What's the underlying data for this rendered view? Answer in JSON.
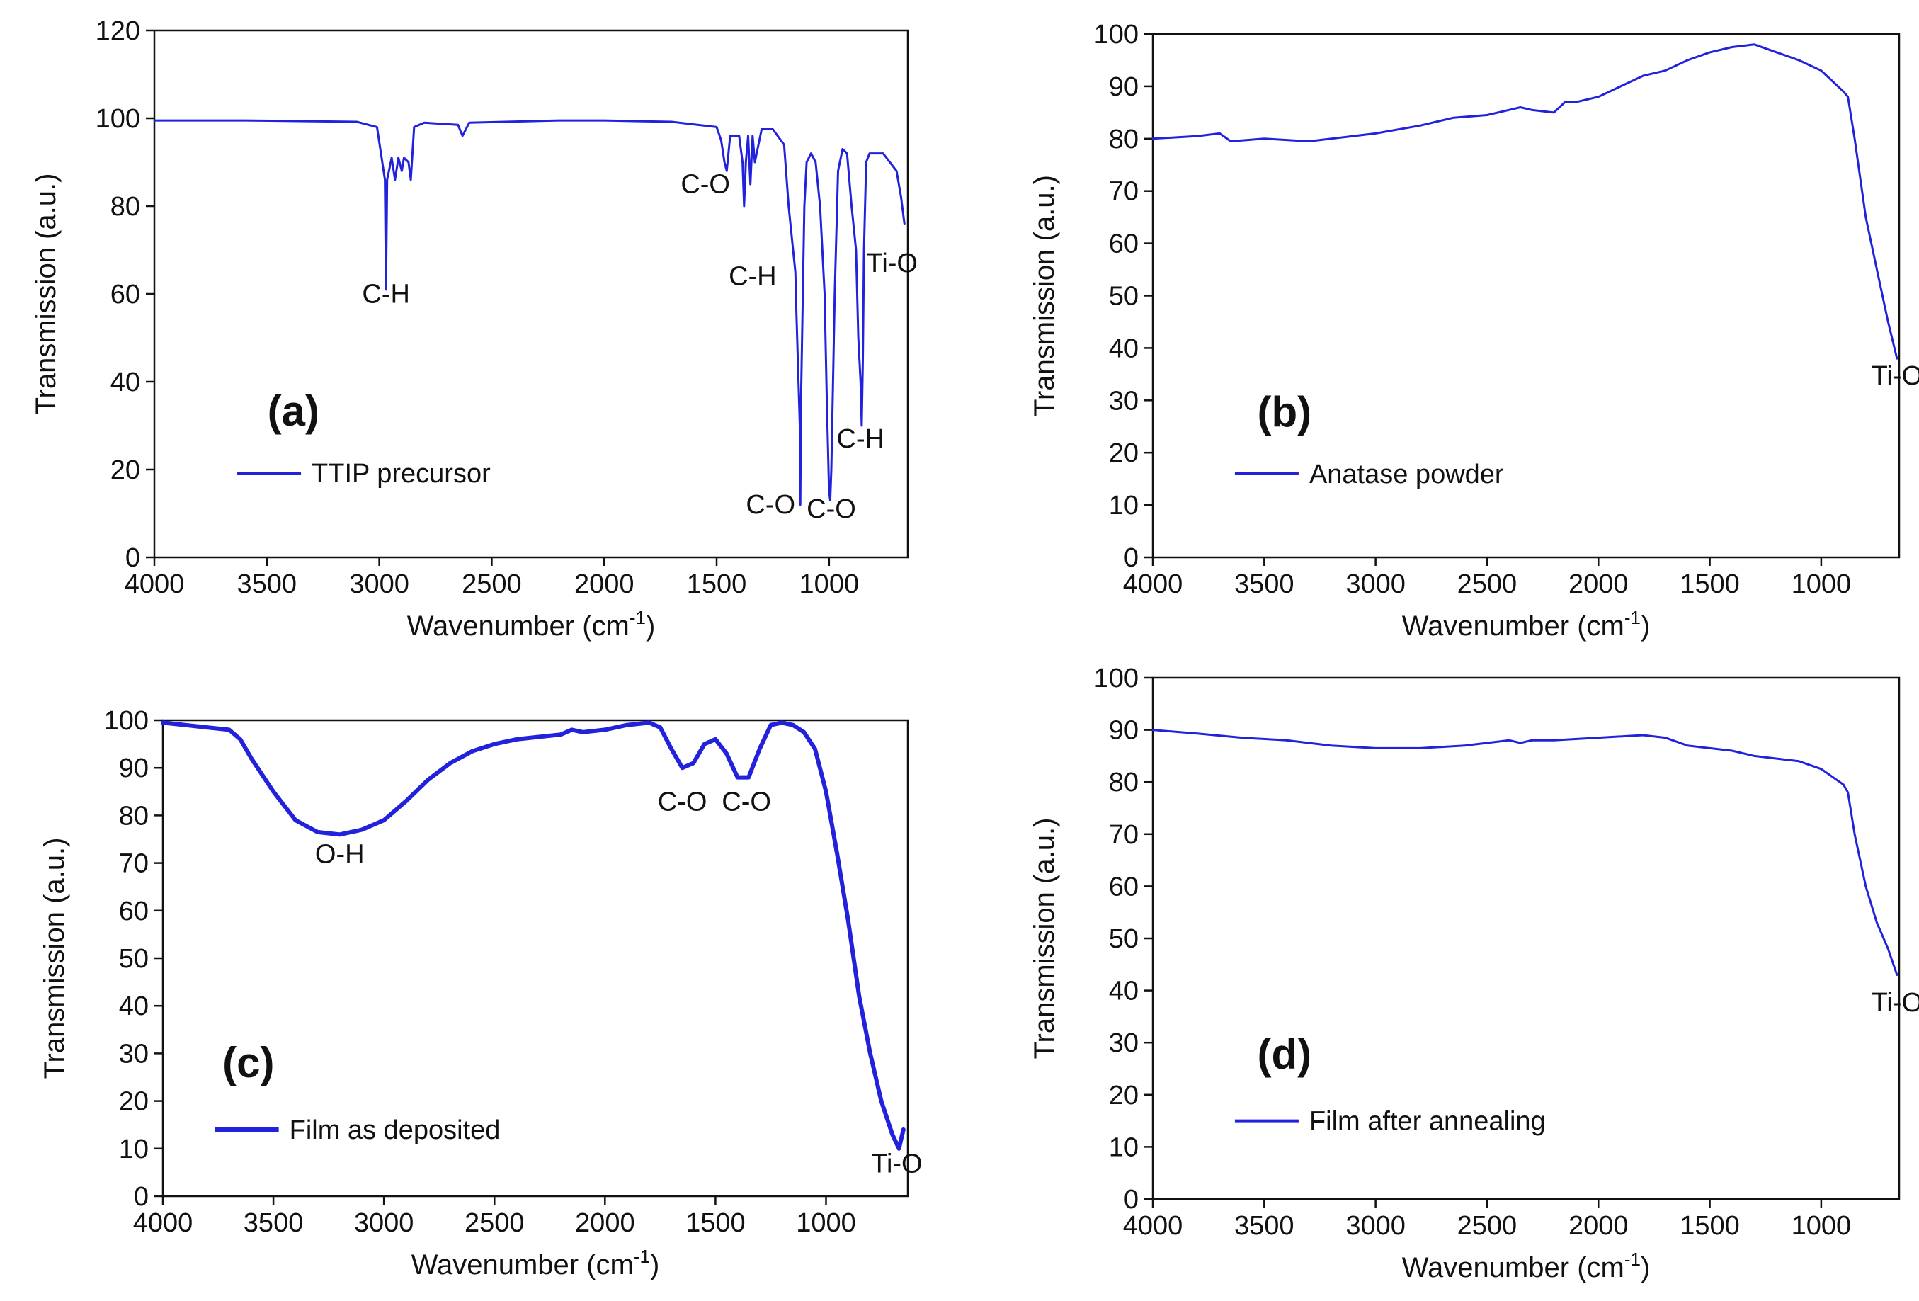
{
  "colors": {
    "series": "#2222dd",
    "axis": "#111111"
  },
  "chart_data": [
    {
      "type": "line",
      "panel_label": "(a)",
      "xlabel": "Wavenumber (cm",
      "xlabel_sup": "-1",
      "xlabel_close": ")",
      "ylabel": "Transmission (a.u.)",
      "xlim": [
        4000,
        650
      ],
      "ylim": [
        0,
        120
      ],
      "xticks": [
        4000,
        3500,
        3000,
        2500,
        2000,
        1500,
        1000
      ],
      "yticks": [
        0,
        20,
        40,
        60,
        80,
        100,
        120
      ],
      "legend": "TTIP precursor",
      "line_width": 3,
      "series": [
        {
          "name": "TTIP precursor",
          "x": [
            4000,
            3600,
            3100,
            3010,
            2975,
            2970,
            2965,
            2945,
            2930,
            2915,
            2900,
            2890,
            2870,
            2860,
            2845,
            2800,
            2650,
            2630,
            2600,
            2200,
            2000,
            1700,
            1500,
            1480,
            1465,
            1455,
            1440,
            1400,
            1385,
            1378,
            1370,
            1360,
            1350,
            1340,
            1330,
            1300,
            1250,
            1200,
            1180,
            1160,
            1150,
            1145,
            1130,
            1128,
            1125,
            1110,
            1100,
            1080,
            1060,
            1040,
            1020,
            1010,
            1000,
            995,
            990,
            975,
            960,
            940,
            920,
            900,
            880,
            870,
            860,
            855,
            850,
            845,
            835,
            820,
            800,
            760,
            730,
            700,
            680,
            665
          ],
          "y": [
            99.5,
            99.5,
            99.2,
            98,
            86,
            61,
            86,
            91,
            86,
            91,
            88,
            91,
            90,
            86,
            98,
            99,
            98.5,
            96,
            99,
            99.5,
            99.5,
            99.2,
            98,
            95,
            90,
            88,
            96,
            96,
            90,
            80,
            90,
            96,
            85,
            96,
            90,
            97.5,
            97.5,
            94,
            80,
            70,
            65,
            55,
            30,
            12,
            35,
            80,
            90,
            92,
            90,
            80,
            60,
            35,
            15,
            13,
            20,
            60,
            88,
            93,
            92,
            80,
            70,
            50,
            40,
            30,
            45,
            70,
            90,
            92,
            92,
            92,
            90,
            88,
            82,
            76
          ]
        }
      ],
      "annotations": [
        {
          "text": "C-H",
          "x": 2970,
          "y": 58
        },
        {
          "text": "C-O",
          "x": 1550,
          "y": 83
        },
        {
          "text": "C-H",
          "x": 1340,
          "y": 62
        },
        {
          "text": "Ti-O",
          "x": 720,
          "y": 65
        },
        {
          "text": "C-H",
          "x": 860,
          "y": 25
        },
        {
          "text": "C-O",
          "x": 1260,
          "y": 10
        },
        {
          "text": "C-O",
          "x": 990,
          "y": 9
        }
      ]
    },
    {
      "type": "line",
      "panel_label": "(b)",
      "xlabel": "Wavenumber (cm",
      "xlabel_sup": "-1",
      "xlabel_close": ")",
      "ylabel": "Transmission (a.u.)",
      "xlim": [
        4000,
        650
      ],
      "ylim": [
        0,
        100
      ],
      "xticks": [
        4000,
        3500,
        3000,
        2500,
        2000,
        1500,
        1000
      ],
      "yticks": [
        0,
        10,
        20,
        30,
        40,
        50,
        60,
        70,
        80,
        90,
        100
      ],
      "legend": "Anatase powder",
      "line_width": 3,
      "series": [
        {
          "name": "Anatase powder",
          "x": [
            4000,
            3800,
            3700,
            3650,
            3500,
            3300,
            3000,
            2800,
            2650,
            2500,
            2400,
            2350,
            2300,
            2200,
            2150,
            2100,
            2000,
            1900,
            1800,
            1700,
            1600,
            1500,
            1400,
            1300,
            1200,
            1100,
            1000,
            950,
            900,
            880,
            850,
            800,
            750,
            700,
            660
          ],
          "y": [
            80,
            80.5,
            81,
            79.5,
            80,
            79.5,
            81,
            82.5,
            84,
            84.5,
            85.5,
            86,
            85.5,
            85,
            87,
            87,
            88,
            90,
            92,
            93,
            95,
            96.5,
            97.5,
            98,
            96.5,
            95,
            93,
            91,
            89,
            88,
            80,
            65,
            55,
            45,
            38
          ]
        }
      ],
      "annotations": [
        {
          "text": "Ti-O",
          "x": 660,
          "y": 33
        }
      ]
    },
    {
      "type": "line",
      "panel_label": "(c)",
      "xlabel": "Wavenumber (cm",
      "xlabel_sup": "-1",
      "xlabel_close": ")",
      "ylabel": "Transmission (a.u.)",
      "xlim": [
        4000,
        630
      ],
      "ylim": [
        0,
        100
      ],
      "xticks": [
        4000,
        3500,
        3000,
        2500,
        2000,
        1500,
        1000
      ],
      "yticks": [
        0,
        10,
        20,
        30,
        40,
        50,
        60,
        70,
        80,
        90,
        100
      ],
      "legend": "Film as deposited",
      "line_width": 6,
      "series": [
        {
          "name": "Film as deposited",
          "x": [
            4000,
            3900,
            3800,
            3700,
            3650,
            3600,
            3500,
            3400,
            3300,
            3200,
            3100,
            3000,
            2900,
            2800,
            2700,
            2600,
            2500,
            2400,
            2300,
            2200,
            2150,
            2100,
            2000,
            1900,
            1800,
            1750,
            1700,
            1650,
            1600,
            1550,
            1500,
            1450,
            1400,
            1350,
            1300,
            1250,
            1200,
            1150,
            1100,
            1050,
            1000,
            950,
            900,
            850,
            800,
            750,
            700,
            680,
            670,
            660,
            650
          ],
          "y": [
            99.5,
            99,
            98.5,
            98,
            96,
            92,
            85,
            79,
            76.5,
            76,
            77,
            79,
            83,
            87.5,
            91,
            93.5,
            95,
            96,
            96.5,
            97,
            98,
            97.5,
            98,
            99,
            99.5,
            98.5,
            94,
            90,
            91,
            95,
            96,
            93,
            88,
            88,
            94,
            99,
            99.5,
            99,
            97.5,
            94,
            85,
            72,
            58,
            42,
            30,
            20,
            13,
            11,
            10,
            12,
            14
          ]
        }
      ],
      "annotations": [
        {
          "text": "O-H",
          "x": 3200,
          "y": 70
        },
        {
          "text": "C-O",
          "x": 1650,
          "y": 81
        },
        {
          "text": "C-O",
          "x": 1360,
          "y": 81
        },
        {
          "text": "Ti-O",
          "x": 680,
          "y": 5
        }
      ]
    },
    {
      "type": "line",
      "panel_label": "(d)",
      "xlabel": "Wavenumber (cm",
      "xlabel_sup": "-1",
      "xlabel_close": ")",
      "ylabel": "Transmission (a.u.)",
      "xlim": [
        4000,
        650
      ],
      "ylim": [
        0,
        100
      ],
      "xticks": [
        4000,
        3500,
        3000,
        2500,
        2000,
        1500,
        1000
      ],
      "yticks": [
        0,
        10,
        20,
        30,
        40,
        50,
        60,
        70,
        80,
        90,
        100
      ],
      "legend": "Film after annealing",
      "line_width": 3,
      "series": [
        {
          "name": "Film after annealing",
          "x": [
            4000,
            3800,
            3600,
            3400,
            3200,
            3000,
            2800,
            2600,
            2400,
            2350,
            2300,
            2200,
            2000,
            1800,
            1700,
            1600,
            1500,
            1400,
            1300,
            1200,
            1100,
            1000,
            950,
            900,
            880,
            850,
            800,
            750,
            700,
            660
          ],
          "y": [
            90,
            89.3,
            88.5,
            88,
            87,
            86.5,
            86.5,
            87,
            88,
            87.5,
            88,
            88,
            88.5,
            89,
            88.5,
            87,
            86.5,
            86,
            85,
            84.5,
            84,
            82.5,
            81,
            79.5,
            78,
            70,
            60,
            53,
            48,
            43
          ]
        }
      ],
      "annotations": [
        {
          "text": "Ti-O",
          "x": 660,
          "y": 36
        }
      ]
    }
  ]
}
